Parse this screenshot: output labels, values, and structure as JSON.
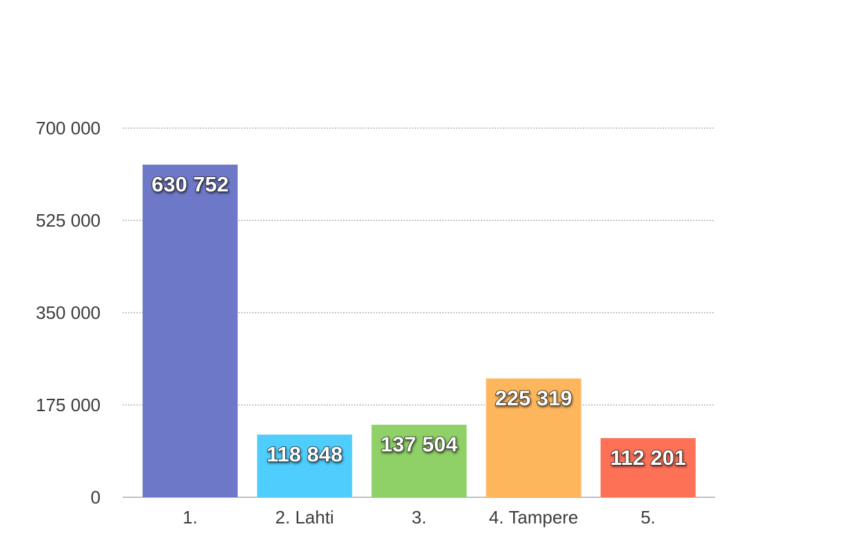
{
  "chart_data": {
    "type": "bar",
    "title": "",
    "xlabel": "",
    "ylabel": "",
    "categories": [
      "1.",
      "2. Lahti",
      "3.",
      "4. Tampere",
      "5."
    ],
    "values": [
      630752,
      118848,
      137504,
      225319,
      112201
    ],
    "data_labels": [
      "630 752",
      "118 848",
      "137 504",
      "225 319",
      "112 201"
    ],
    "colors": [
      "#6e78c8",
      "#4fcdfd",
      "#8fd067",
      "#fdb65c",
      "#fd7157"
    ],
    "ylim": [
      0,
      700000
    ],
    "yticks": [
      0,
      175000,
      350000,
      525000,
      700000
    ],
    "ytick_labels": [
      "0",
      "175 000",
      "350 000",
      "525 000",
      "700 000"
    ],
    "grid": true,
    "legend": "none"
  }
}
